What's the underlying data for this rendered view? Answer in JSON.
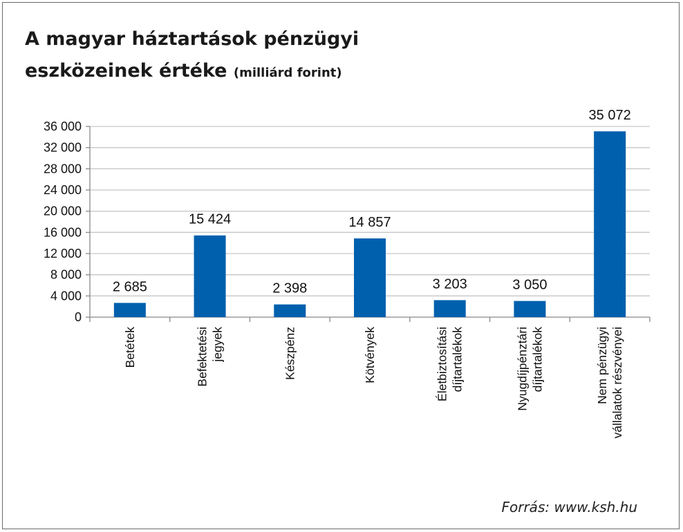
{
  "title_main": "A magyar háztartások pénzügyi",
  "title_line2": "eszközeinek értéke",
  "title_unit": "(milliárd forint)",
  "source": "Forrás: www.ksh.hu",
  "colors": {
    "bar": "#0060ad",
    "grid": "#c6c6c6",
    "axis": "#888888",
    "text": "#111111"
  },
  "chart_data": {
    "type": "bar",
    "title": "A magyar háztartások pénzügyi eszközeinek értéke (milliárd forint)",
    "xlabel": "",
    "ylabel": "",
    "ylim": [
      0,
      36000
    ],
    "yticks": [
      0,
      4000,
      8000,
      12000,
      16000,
      20000,
      24000,
      28000,
      32000,
      36000
    ],
    "ytick_labels": [
      "0",
      "4 000",
      "8 000",
      "12 000",
      "16 000",
      "20 000",
      "24 000",
      "28 000",
      "32 000",
      "36 000"
    ],
    "grid": true,
    "categories": [
      [
        "Betétek"
      ],
      [
        "Befektetési",
        "jegyek"
      ],
      [
        "Készpénz"
      ],
      [
        "Kötvények"
      ],
      [
        "Életbiztosítási",
        "díjtartalékok"
      ],
      [
        "Nyugdíjpénztári",
        "díjtartalékok"
      ],
      [
        "Nem pénzügyi",
        "vállalatok részvényei"
      ]
    ],
    "values": [
      2685,
      15424,
      2398,
      14857,
      3203,
      3050,
      35072
    ],
    "value_labels": [
      "2 685",
      "15 424",
      "2 398",
      "14 857",
      "3 203",
      "3 050",
      "35 072"
    ]
  }
}
